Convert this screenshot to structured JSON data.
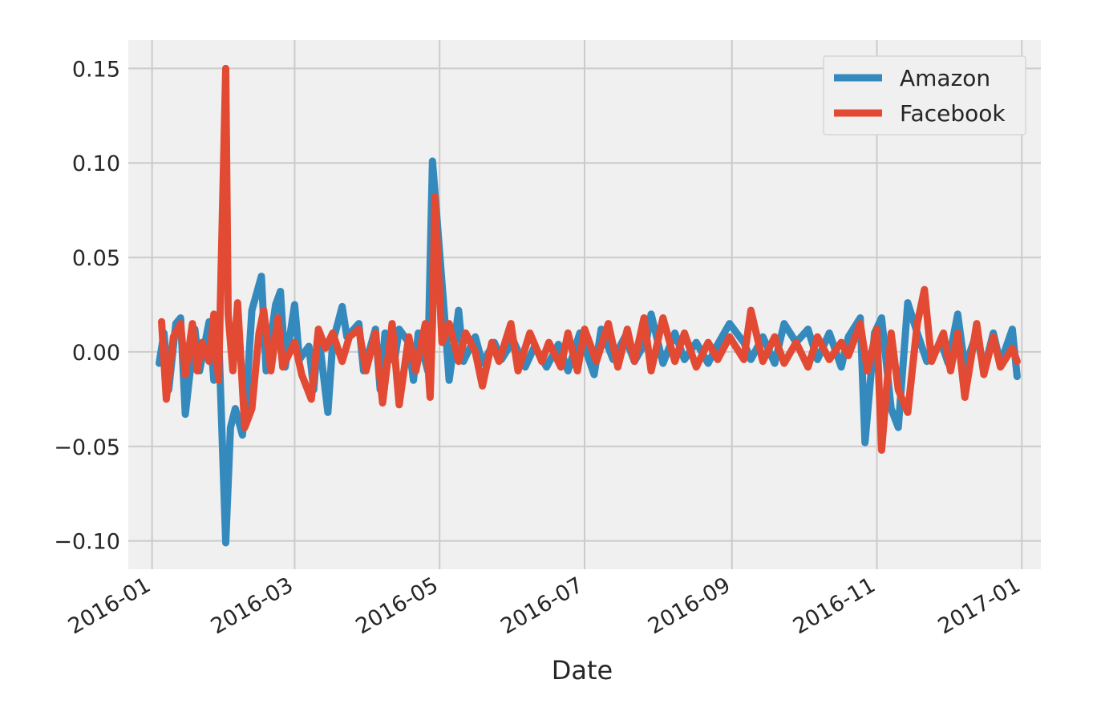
{
  "chart_data": {
    "type": "line",
    "title": "",
    "xlabel": "Date",
    "ylabel": "",
    "x_ticks": [
      "2016-01",
      "2016-03",
      "2016-05",
      "2016-07",
      "2016-09",
      "2016-11",
      "2017-01"
    ],
    "y_ticks": [
      0.15,
      0.1,
      0.05,
      0.0,
      -0.05,
      -0.1
    ],
    "y_tick_labels": [
      "0.15",
      "0.10",
      "0.05",
      "0.00",
      "−0.05",
      "−0.10"
    ],
    "ylim": [
      -0.115,
      0.165
    ],
    "xlim": [
      "2015-12-22",
      "2017-01-09"
    ],
    "grid": true,
    "legend_position": "top-right",
    "colors": {
      "Amazon": "#348ABD",
      "Facebook": "#E24A33",
      "background": "#F0F0F0",
      "grid": "#CBCBCB"
    },
    "series": [
      {
        "name": "Amazon",
        "points": [
          [
            "2016-01-04",
            -0.006
          ],
          [
            "2016-01-06",
            0.01
          ],
          [
            "2016-01-08",
            -0.02
          ],
          [
            "2016-01-11",
            0.015
          ],
          [
            "2016-01-13",
            0.018
          ],
          [
            "2016-01-15",
            -0.033
          ],
          [
            "2016-01-19",
            0.012
          ],
          [
            "2016-01-21",
            -0.01
          ],
          [
            "2016-01-25",
            0.016
          ],
          [
            "2016-01-27",
            -0.015
          ],
          [
            "2016-01-29",
            0.01
          ],
          [
            "2016-02-01",
            -0.101
          ],
          [
            "2016-02-03",
            -0.04
          ],
          [
            "2016-02-05",
            -0.03
          ],
          [
            "2016-02-08",
            -0.044
          ],
          [
            "2016-02-10",
            -0.018
          ],
          [
            "2016-02-12",
            0.022
          ],
          [
            "2016-02-16",
            0.04
          ],
          [
            "2016-02-18",
            -0.01
          ],
          [
            "2016-02-22",
            0.025
          ],
          [
            "2016-02-24",
            0.032
          ],
          [
            "2016-02-26",
            -0.008
          ],
          [
            "2016-03-01",
            0.025
          ],
          [
            "2016-03-03",
            -0.004
          ],
          [
            "2016-03-07",
            0.003
          ],
          [
            "2016-03-09",
            -0.02
          ],
          [
            "2016-03-11",
            0.01
          ],
          [
            "2016-03-15",
            -0.032
          ],
          [
            "2016-03-17",
            0.005
          ],
          [
            "2016-03-21",
            0.024
          ],
          [
            "2016-03-23",
            0.008
          ],
          [
            "2016-03-28",
            0.015
          ],
          [
            "2016-03-30",
            -0.01
          ],
          [
            "2016-04-04",
            0.012
          ],
          [
            "2016-04-06",
            -0.02
          ],
          [
            "2016-04-08",
            0.01
          ],
          [
            "2016-04-12",
            -0.005
          ],
          [
            "2016-04-14",
            0.012
          ],
          [
            "2016-04-18",
            0.005
          ],
          [
            "2016-04-20",
            -0.015
          ],
          [
            "2016-04-22",
            0.01
          ],
          [
            "2016-04-26",
            -0.01
          ],
          [
            "2016-04-28",
            0.101
          ],
          [
            "2016-04-29",
            0.085
          ],
          [
            "2016-05-03",
            0.02
          ],
          [
            "2016-05-05",
            -0.015
          ],
          [
            "2016-05-09",
            0.022
          ],
          [
            "2016-05-11",
            -0.005
          ],
          [
            "2016-05-16",
            0.008
          ],
          [
            "2016-05-19",
            -0.006
          ],
          [
            "2016-05-24",
            0.005
          ],
          [
            "2016-05-27",
            -0.004
          ],
          [
            "2016-06-01",
            0.006
          ],
          [
            "2016-06-06",
            -0.008
          ],
          [
            "2016-06-10",
            0.003
          ],
          [
            "2016-06-15",
            -0.008
          ],
          [
            "2016-06-20",
            0.004
          ],
          [
            "2016-06-24",
            -0.01
          ],
          [
            "2016-06-29",
            0.01
          ],
          [
            "2016-07-05",
            -0.012
          ],
          [
            "2016-07-08",
            0.012
          ],
          [
            "2016-07-13",
            -0.004
          ],
          [
            "2016-07-18",
            0.008
          ],
          [
            "2016-07-22",
            -0.005
          ],
          [
            "2016-07-27",
            0.006
          ],
          [
            "2016-07-29",
            0.02
          ],
          [
            "2016-08-03",
            -0.006
          ],
          [
            "2016-08-08",
            0.01
          ],
          [
            "2016-08-12",
            -0.004
          ],
          [
            "2016-08-17",
            0.005
          ],
          [
            "2016-08-22",
            -0.006
          ],
          [
            "2016-08-26",
            0.004
          ],
          [
            "2016-08-31",
            0.015
          ],
          [
            "2016-09-06",
            0.005
          ],
          [
            "2016-09-09",
            -0.004
          ],
          [
            "2016-09-14",
            0.008
          ],
          [
            "2016-09-19",
            -0.006
          ],
          [
            "2016-09-23",
            0.015
          ],
          [
            "2016-09-28",
            0.005
          ],
          [
            "2016-10-03",
            0.012
          ],
          [
            "2016-10-07",
            -0.004
          ],
          [
            "2016-10-12",
            0.01
          ],
          [
            "2016-10-17",
            -0.008
          ],
          [
            "2016-10-20",
            0.008
          ],
          [
            "2016-10-25",
            0.018
          ],
          [
            "2016-10-27",
            -0.048
          ],
          [
            "2016-10-31",
            0.01
          ],
          [
            "2016-11-03",
            0.018
          ],
          [
            "2016-11-07",
            -0.03
          ],
          [
            "2016-11-10",
            -0.04
          ],
          [
            "2016-11-14",
            0.026
          ],
          [
            "2016-11-18",
            0.01
          ],
          [
            "2016-11-22",
            -0.005
          ],
          [
            "2016-11-28",
            0.005
          ],
          [
            "2016-12-01",
            -0.006
          ],
          [
            "2016-12-05",
            0.02
          ],
          [
            "2016-12-08",
            -0.008
          ],
          [
            "2016-12-13",
            0.01
          ],
          [
            "2016-12-16",
            -0.01
          ],
          [
            "2016-12-20",
            0.01
          ],
          [
            "2016-12-23",
            -0.006
          ],
          [
            "2016-12-28",
            0.012
          ],
          [
            "2016-12-30",
            -0.013
          ]
        ]
      },
      {
        "name": "Facebook",
        "points": [
          [
            "2016-01-05",
            0.016
          ],
          [
            "2016-01-07",
            -0.025
          ],
          [
            "2016-01-10",
            0.008
          ],
          [
            "2016-01-13",
            0.015
          ],
          [
            "2016-01-15",
            -0.012
          ],
          [
            "2016-01-18",
            0.015
          ],
          [
            "2016-01-20",
            -0.01
          ],
          [
            "2016-01-22",
            0.005
          ],
          [
            "2016-01-25",
            -0.005
          ],
          [
            "2016-01-27",
            0.02
          ],
          [
            "2016-01-29",
            -0.015
          ],
          [
            "2016-02-01",
            0.15
          ],
          [
            "2016-02-02",
            0.02
          ],
          [
            "2016-02-04",
            -0.01
          ],
          [
            "2016-02-06",
            0.026
          ],
          [
            "2016-02-09",
            -0.04
          ],
          [
            "2016-02-12",
            -0.03
          ],
          [
            "2016-02-15",
            0.01
          ],
          [
            "2016-02-17",
            0.022
          ],
          [
            "2016-02-20",
            -0.01
          ],
          [
            "2016-02-23",
            0.018
          ],
          [
            "2016-02-25",
            -0.008
          ],
          [
            "2016-03-01",
            0.005
          ],
          [
            "2016-03-04",
            -0.012
          ],
          [
            "2016-03-08",
            -0.025
          ],
          [
            "2016-03-11",
            0.012
          ],
          [
            "2016-03-14",
            0.002
          ],
          [
            "2016-03-17",
            0.01
          ],
          [
            "2016-03-21",
            -0.005
          ],
          [
            "2016-03-24",
            0.008
          ],
          [
            "2016-03-28",
            0.012
          ],
          [
            "2016-03-31",
            -0.01
          ],
          [
            "2016-04-04",
            0.01
          ],
          [
            "2016-04-07",
            -0.027
          ],
          [
            "2016-04-11",
            0.015
          ],
          [
            "2016-04-14",
            -0.028
          ],
          [
            "2016-04-18",
            0.008
          ],
          [
            "2016-04-21",
            -0.01
          ],
          [
            "2016-04-25",
            0.015
          ],
          [
            "2016-04-27",
            -0.024
          ],
          [
            "2016-04-28",
            0.015
          ],
          [
            "2016-04-29",
            0.082
          ],
          [
            "2016-05-02",
            0.005
          ],
          [
            "2016-05-05",
            0.015
          ],
          [
            "2016-05-09",
            -0.005
          ],
          [
            "2016-05-12",
            0.01
          ],
          [
            "2016-05-16",
            0.0
          ],
          [
            "2016-05-19",
            -0.018
          ],
          [
            "2016-05-23",
            0.005
          ],
          [
            "2016-05-26",
            -0.005
          ],
          [
            "2016-05-31",
            0.015
          ],
          [
            "2016-06-03",
            -0.01
          ],
          [
            "2016-06-08",
            0.01
          ],
          [
            "2016-06-13",
            -0.005
          ],
          [
            "2016-06-16",
            0.005
          ],
          [
            "2016-06-21",
            -0.008
          ],
          [
            "2016-06-24",
            0.01
          ],
          [
            "2016-06-28",
            -0.01
          ],
          [
            "2016-07-01",
            0.012
          ],
          [
            "2016-07-06",
            -0.005
          ],
          [
            "2016-07-11",
            0.015
          ],
          [
            "2016-07-15",
            -0.008
          ],
          [
            "2016-07-19",
            0.012
          ],
          [
            "2016-07-22",
            -0.005
          ],
          [
            "2016-07-26",
            0.018
          ],
          [
            "2016-07-29",
            -0.01
          ],
          [
            "2016-08-03",
            0.018
          ],
          [
            "2016-08-08",
            -0.005
          ],
          [
            "2016-08-12",
            0.01
          ],
          [
            "2016-08-17",
            -0.008
          ],
          [
            "2016-08-22",
            0.005
          ],
          [
            "2016-08-26",
            -0.004
          ],
          [
            "2016-08-31",
            0.008
          ],
          [
            "2016-09-06",
            -0.004
          ],
          [
            "2016-09-09",
            0.022
          ],
          [
            "2016-09-14",
            -0.005
          ],
          [
            "2016-09-19",
            0.008
          ],
          [
            "2016-09-23",
            -0.006
          ],
          [
            "2016-09-28",
            0.005
          ],
          [
            "2016-10-03",
            -0.008
          ],
          [
            "2016-10-07",
            0.008
          ],
          [
            "2016-10-12",
            -0.004
          ],
          [
            "2016-10-17",
            0.005
          ],
          [
            "2016-10-20",
            -0.002
          ],
          [
            "2016-10-25",
            0.015
          ],
          [
            "2016-10-28",
            -0.01
          ],
          [
            "2016-11-01",
            0.012
          ],
          [
            "2016-11-03",
            -0.052
          ],
          [
            "2016-11-07",
            0.01
          ],
          [
            "2016-11-10",
            -0.02
          ],
          [
            "2016-11-14",
            -0.032
          ],
          [
            "2016-11-18",
            0.015
          ],
          [
            "2016-11-21",
            0.033
          ],
          [
            "2016-11-24",
            -0.005
          ],
          [
            "2016-11-29",
            0.01
          ],
          [
            "2016-12-02",
            -0.01
          ],
          [
            "2016-12-05",
            0.01
          ],
          [
            "2016-12-08",
            -0.024
          ],
          [
            "2016-12-13",
            0.015
          ],
          [
            "2016-12-16",
            -0.012
          ],
          [
            "2016-12-20",
            0.008
          ],
          [
            "2016-12-23",
            -0.008
          ],
          [
            "2016-12-28",
            0.002
          ],
          [
            "2016-12-30",
            -0.005
          ]
        ]
      }
    ]
  }
}
